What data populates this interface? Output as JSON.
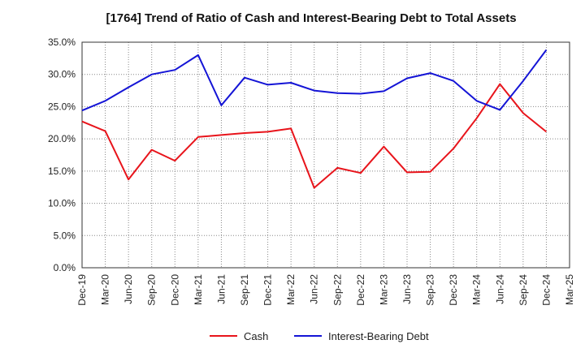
{
  "chart_data": {
    "type": "line",
    "title": "[1764]  Trend of Ratio of Cash and Interest-Bearing Debt to Total Assets",
    "xlabel": "",
    "ylabel": "",
    "ylim": [
      0,
      35
    ],
    "y_ticks": [
      0,
      5,
      10,
      15,
      20,
      25,
      30,
      35
    ],
    "y_tick_labels": [
      "0.0%",
      "5.0%",
      "10.0%",
      "15.0%",
      "20.0%",
      "25.0%",
      "30.0%",
      "35.0%"
    ],
    "categories": [
      "Dec-19",
      "Mar-20",
      "Jun-20",
      "Sep-20",
      "Dec-20",
      "Mar-21",
      "Jun-21",
      "Sep-21",
      "Dec-21",
      "Mar-22",
      "Jun-22",
      "Sep-22",
      "Dec-22",
      "Mar-23",
      "Jun-23",
      "Sep-23",
      "Dec-23",
      "Mar-24",
      "Jun-24",
      "Sep-24",
      "Dec-24",
      "Mar-25"
    ],
    "grid": true,
    "legend_position": "bottom",
    "series": [
      {
        "name": "Cash",
        "color": "#e8141b",
        "values": [
          22.7,
          21.2,
          13.7,
          18.3,
          16.6,
          20.3,
          20.6,
          20.9,
          21.1,
          21.6,
          12.4,
          15.5,
          14.7,
          18.8,
          14.8,
          14.9,
          18.5,
          23.2,
          28.5,
          24.0,
          21.1,
          null
        ]
      },
      {
        "name": "Interest-Bearing Debt",
        "color": "#1414d6",
        "values": [
          24.4,
          25.9,
          28.0,
          30.0,
          30.7,
          33.0,
          25.2,
          29.5,
          28.4,
          28.7,
          27.5,
          27.1,
          27.0,
          27.4,
          29.4,
          30.2,
          29.0,
          25.9,
          24.5,
          29.0,
          33.8,
          null
        ]
      }
    ]
  }
}
